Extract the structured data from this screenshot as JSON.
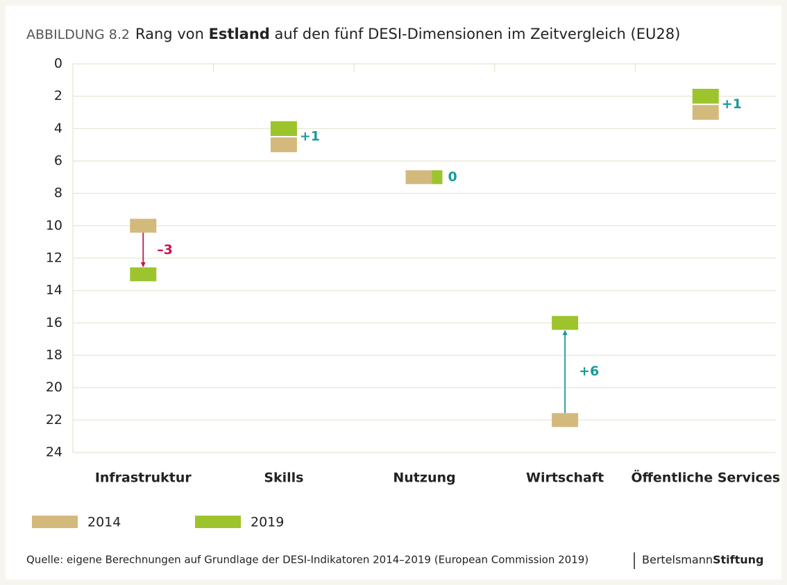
{
  "chart_data": {
    "type": "rank_change",
    "figure_label": "ABBILDUNG 8.2",
    "title_parts": [
      "Rang von ",
      "Estland",
      " auf den fünf DESI-Dimensionen im Zeitvergleich (EU28)"
    ],
    "categories": [
      "Infrastruktur",
      "Skills",
      "Nutzung",
      "Wirtschaft",
      "Öffentliche Services"
    ],
    "series": [
      {
        "name": "2014",
        "color": "#d3b97c",
        "values": [
          10,
          5,
          7,
          22,
          3
        ]
      },
      {
        "name": "2019",
        "color": "#9dc42c",
        "values": [
          13,
          4,
          7,
          16,
          2
        ]
      }
    ],
    "change": [
      -3,
      1,
      0,
      6,
      1
    ],
    "change_labels": [
      "–3",
      "+1",
      "0",
      "+6",
      "+1"
    ],
    "negative_color": "#c4164c",
    "positive_color": "#1b9a9b",
    "ylim": [
      0,
      24
    ],
    "yticks": [
      0,
      2,
      4,
      6,
      8,
      10,
      12,
      14,
      16,
      18,
      20,
      22,
      24
    ],
    "y_inverted": true,
    "grid": true,
    "source": "Quelle: eigene Berechnungen auf Grundlage der DESI-Indikatoren 2014–2019 (European Commission 2019)",
    "brand": [
      "Bertelsmann",
      "Stiftung"
    ]
  }
}
